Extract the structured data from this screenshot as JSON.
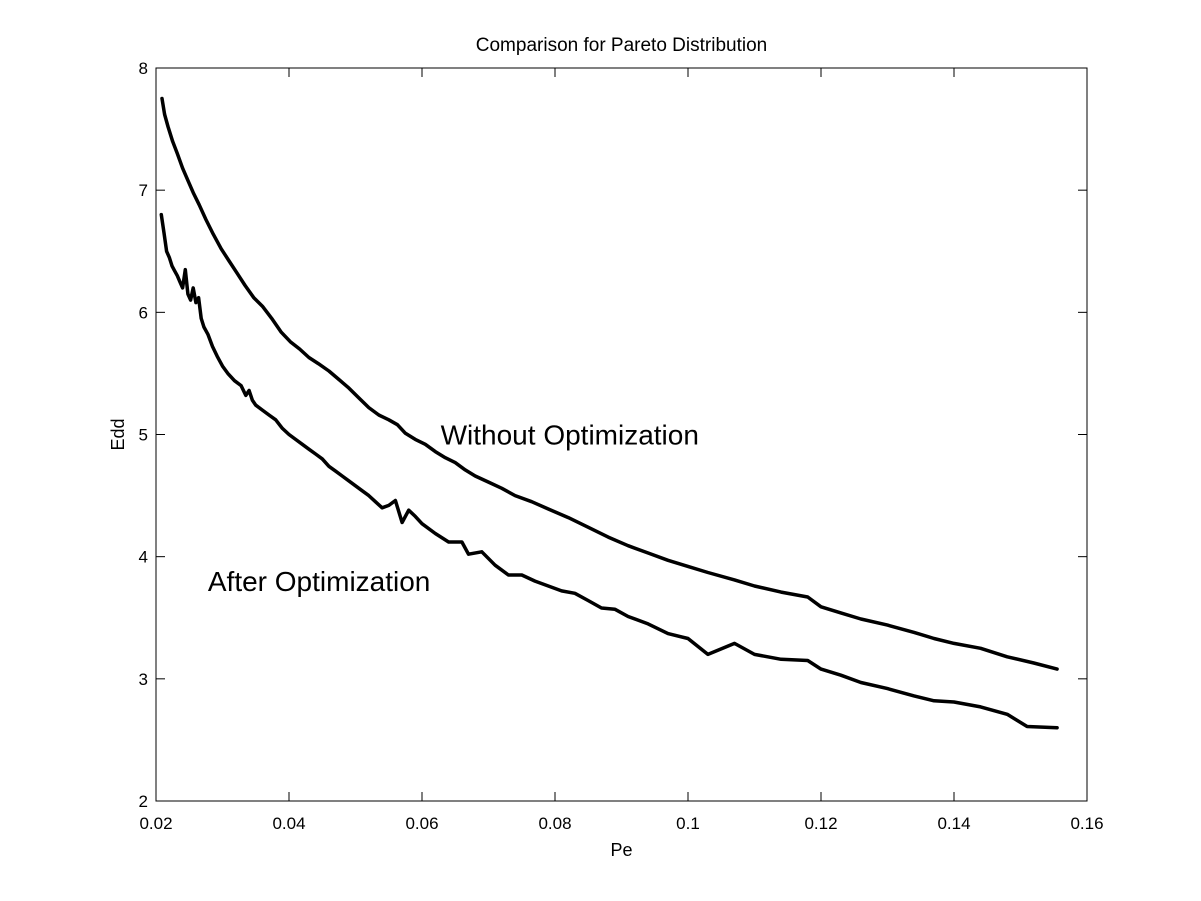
{
  "chart_data": {
    "type": "line",
    "title": "Comparison for Pareto Distribution",
    "xlabel": "Pe",
    "ylabel": "Edd",
    "xlim": [
      0.02,
      0.16
    ],
    "ylim": [
      2,
      8
    ],
    "xticks": [
      0.02,
      0.04,
      0.06,
      0.08,
      0.1,
      0.12,
      0.14,
      0.16
    ],
    "xtick_labels": [
      "0.02",
      "0.04",
      "0.06",
      "0.08",
      "0.1",
      "0.12",
      "0.14",
      "0.16"
    ],
    "yticks": [
      2,
      3,
      4,
      5,
      6,
      7,
      8
    ],
    "ytick_labels": [
      "2",
      "3",
      "4",
      "5",
      "6",
      "7",
      "8"
    ],
    "grid": false,
    "annotations": [
      {
        "text": "Without Optimization",
        "x": 0.0628,
        "y": 5.0
      },
      {
        "text": "After Optimization",
        "x": 0.0278,
        "y": 3.8
      }
    ],
    "series": [
      {
        "name": "Without Optimization",
        "color": "#000000",
        "x": [
          0.0209,
          0.0213,
          0.0218,
          0.0225,
          0.0232,
          0.024,
          0.0248,
          0.0256,
          0.0265,
          0.0275,
          0.0286,
          0.0298,
          0.031,
          0.0322,
          0.0334,
          0.0347,
          0.036,
          0.0374,
          0.0388,
          0.0402,
          0.0416,
          0.043,
          0.0444,
          0.046,
          0.0475,
          0.049,
          0.0505,
          0.052,
          0.0535,
          0.055,
          0.0563,
          0.0575,
          0.059,
          0.0605,
          0.062,
          0.0635,
          0.065,
          0.0665,
          0.068,
          0.07,
          0.072,
          0.074,
          0.0765,
          0.079,
          0.082,
          0.085,
          0.088,
          0.091,
          0.094,
          0.097,
          0.1,
          0.103,
          0.107,
          0.11,
          0.114,
          0.118,
          0.12,
          0.123,
          0.126,
          0.13,
          0.134,
          0.137,
          0.14,
          0.144,
          0.148,
          0.152,
          0.1555
        ],
        "y": [
          7.75,
          7.62,
          7.52,
          7.4,
          7.3,
          7.18,
          7.08,
          6.98,
          6.88,
          6.76,
          6.64,
          6.52,
          6.42,
          6.32,
          6.22,
          6.12,
          6.05,
          5.95,
          5.84,
          5.76,
          5.7,
          5.63,
          5.58,
          5.52,
          5.45,
          5.38,
          5.3,
          5.22,
          5.16,
          5.12,
          5.08,
          5.01,
          4.96,
          4.92,
          4.86,
          4.81,
          4.77,
          4.71,
          4.66,
          4.61,
          4.56,
          4.5,
          4.45,
          4.39,
          4.32,
          4.24,
          4.16,
          4.09,
          4.03,
          3.97,
          3.92,
          3.87,
          3.81,
          3.76,
          3.71,
          3.67,
          3.59,
          3.54,
          3.49,
          3.44,
          3.38,
          3.33,
          3.29,
          3.25,
          3.18,
          3.13,
          3.08
        ]
      },
      {
        "name": "After Optimization",
        "color": "#000000",
        "x": [
          0.0208,
          0.0212,
          0.0216,
          0.022,
          0.0224,
          0.0228,
          0.0232,
          0.0236,
          0.024,
          0.0244,
          0.0248,
          0.0252,
          0.0256,
          0.026,
          0.0264,
          0.0268,
          0.0272,
          0.0278,
          0.0285,
          0.0292,
          0.03,
          0.0308,
          0.0318,
          0.0328,
          0.0335,
          0.034,
          0.0345,
          0.035,
          0.036,
          0.037,
          0.038,
          0.039,
          0.04,
          0.041,
          0.042,
          0.043,
          0.044,
          0.045,
          0.046,
          0.047,
          0.048,
          0.049,
          0.05,
          0.051,
          0.052,
          0.053,
          0.054,
          0.055,
          0.056,
          0.057,
          0.058,
          0.059,
          0.06,
          0.062,
          0.064,
          0.066,
          0.067,
          0.069,
          0.071,
          0.073,
          0.075,
          0.077,
          0.079,
          0.081,
          0.083,
          0.085,
          0.087,
          0.089,
          0.091,
          0.094,
          0.097,
          0.1,
          0.103,
          0.107,
          0.11,
          0.114,
          0.118,
          0.12,
          0.123,
          0.126,
          0.13,
          0.134,
          0.137,
          0.14,
          0.144,
          0.148,
          0.151,
          0.1555
        ],
        "y": [
          6.8,
          6.65,
          6.5,
          6.45,
          6.38,
          6.34,
          6.3,
          6.25,
          6.2,
          6.35,
          6.15,
          6.1,
          6.2,
          6.08,
          6.12,
          5.95,
          5.88,
          5.82,
          5.72,
          5.64,
          5.56,
          5.5,
          5.44,
          5.4,
          5.32,
          5.36,
          5.28,
          5.24,
          5.2,
          5.16,
          5.12,
          5.05,
          5.0,
          4.96,
          4.92,
          4.88,
          4.84,
          4.8,
          4.74,
          4.7,
          4.66,
          4.62,
          4.58,
          4.54,
          4.5,
          4.45,
          4.4,
          4.42,
          4.46,
          4.28,
          4.38,
          4.33,
          4.27,
          4.19,
          4.12,
          4.12,
          4.02,
          4.04,
          3.93,
          3.85,
          3.85,
          3.8,
          3.76,
          3.72,
          3.7,
          3.64,
          3.58,
          3.57,
          3.51,
          3.45,
          3.37,
          3.33,
          3.2,
          3.29,
          3.2,
          3.16,
          3.15,
          3.08,
          3.03,
          2.97,
          2.92,
          2.86,
          2.82,
          2.81,
          2.77,
          2.71,
          2.61,
          2.6
        ]
      }
    ]
  }
}
